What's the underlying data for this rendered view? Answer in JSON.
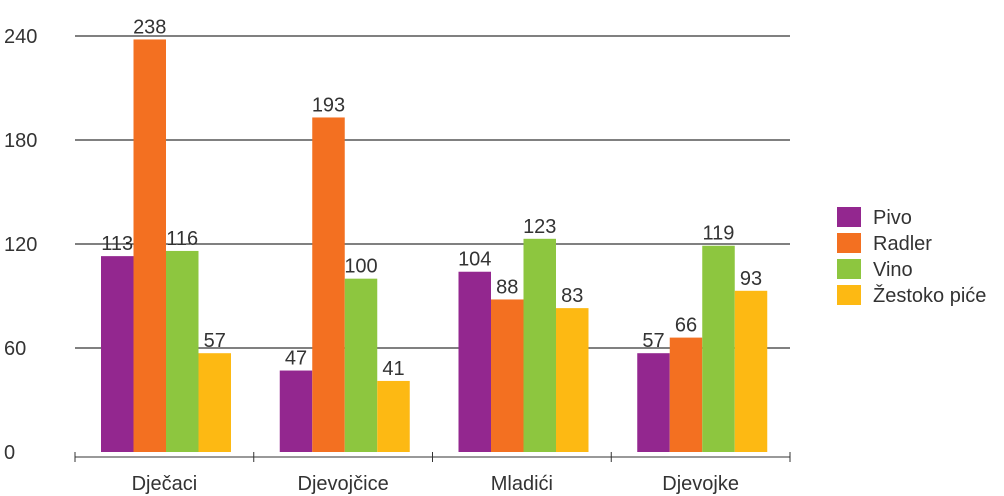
{
  "chart_data": {
    "type": "bar",
    "categories": [
      "Dječaci",
      "Djevojčice",
      "Mladići",
      "Djevojke"
    ],
    "series": [
      {
        "name": "Pivo",
        "color": "#93278f",
        "values": [
          113,
          47,
          104,
          57
        ]
      },
      {
        "name": "Radler",
        "color": "#f37021",
        "values": [
          238,
          193,
          88,
          66
        ]
      },
      {
        "name": "Vino",
        "color": "#8dc63f",
        "values": [
          116,
          100,
          123,
          119
        ]
      },
      {
        "name": "Žestoko piće",
        "color": "#fdb913",
        "values": [
          57,
          41,
          83,
          93
        ]
      }
    ],
    "ylim": [
      0,
      240
    ],
    "yticks": [
      0,
      60,
      120,
      180,
      240
    ],
    "grid": true,
    "legend_position": "right"
  }
}
